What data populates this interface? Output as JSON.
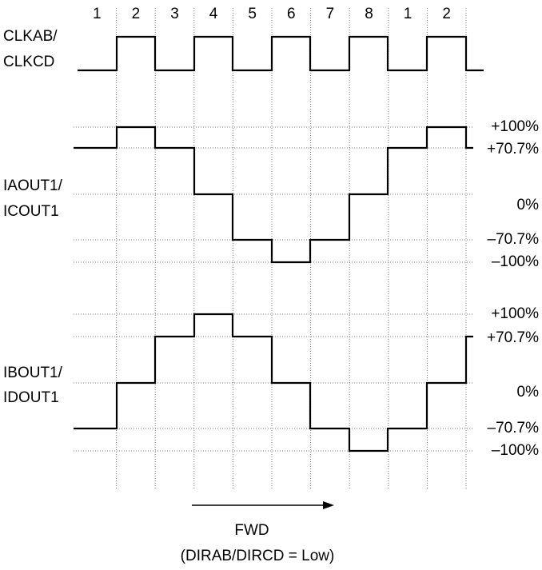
{
  "steps": [
    "1",
    "2",
    "3",
    "4",
    "5",
    "6",
    "7",
    "8",
    "1",
    "2"
  ],
  "signals": [
    {
      "label_lines": [
        "CLKAB/",
        "CLKCD"
      ]
    },
    {
      "label_lines": [
        "IAOUT1/",
        "ICOUT1"
      ],
      "levels": [
        "+100%",
        "+70.7%",
        "0%",
        "–70.7%",
        "–100%"
      ]
    },
    {
      "label_lines": [
        "IBOUT1/",
        "IDOUT1"
      ],
      "levels": [
        "+100%",
        "+70.7%",
        "0%",
        "–70.7%",
        "–100%"
      ]
    }
  ],
  "direction_label": "FWD",
  "caption": "(DIRAB/DIRCD = Low)"
}
